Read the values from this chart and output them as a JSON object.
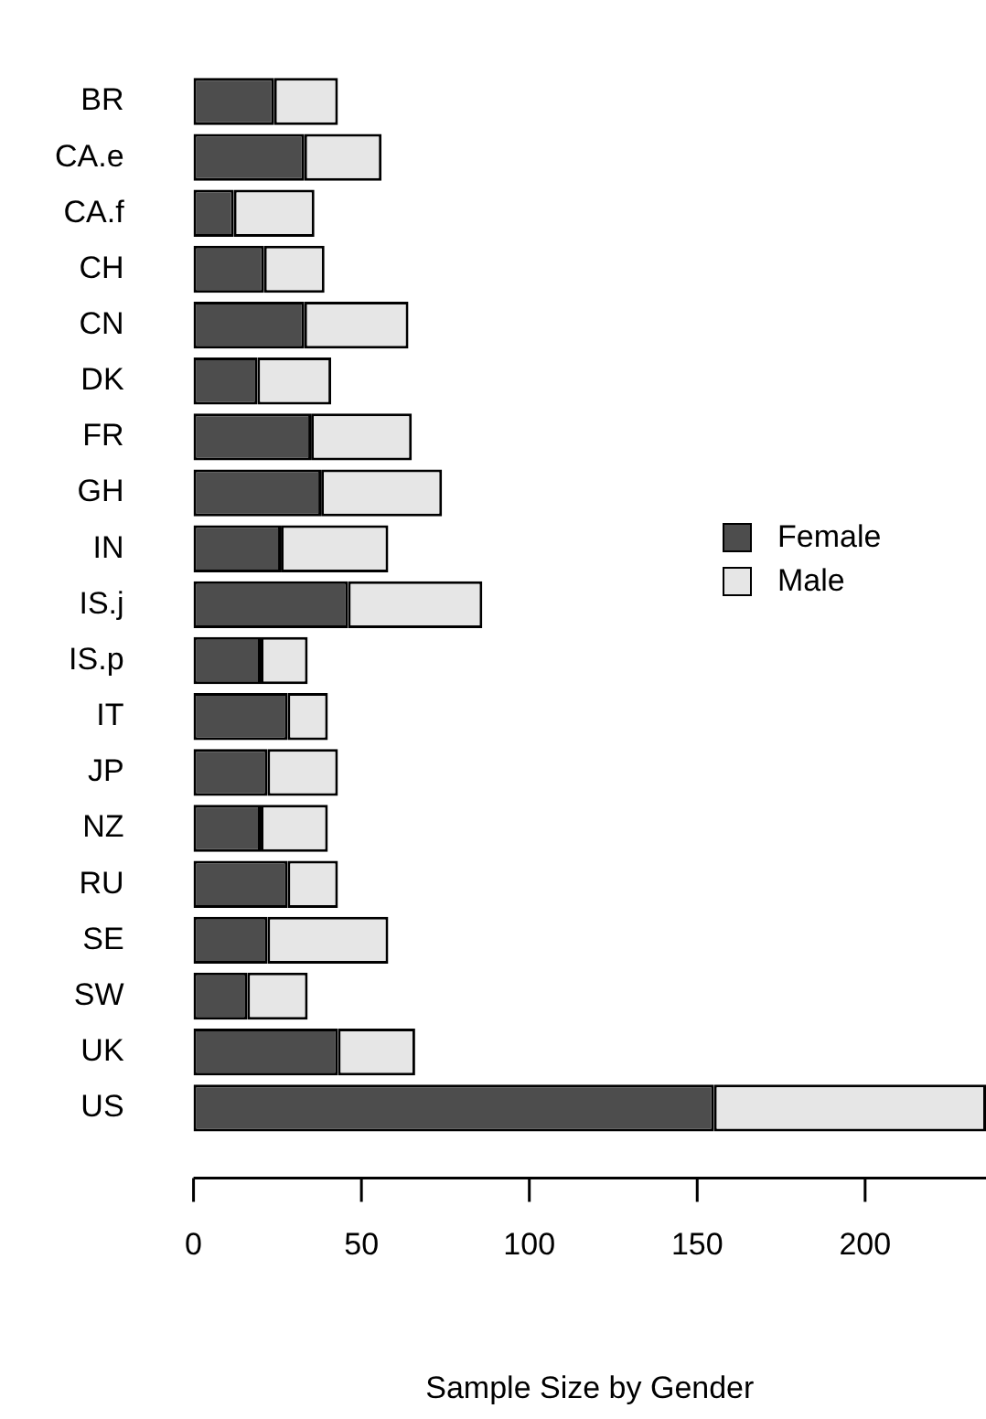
{
  "chart_data": {
    "type": "bar",
    "orientation": "horizontal",
    "stacked": true,
    "xlabel": "Sample Size by Gender",
    "categories": [
      "BR",
      "CA.e",
      "CA.f",
      "CH",
      "CN",
      "DK",
      "FR",
      "GH",
      "IN",
      "IS.j",
      "IS.p",
      "IT",
      "JP",
      "NZ",
      "RU",
      "SE",
      "SW",
      "UK",
      "US"
    ],
    "series": [
      {
        "name": "Female",
        "color": "#4d4d4d",
        "values": [
          24,
          33,
          12,
          21,
          33,
          19,
          35,
          38,
          26,
          46,
          20,
          28,
          22,
          20,
          28,
          22,
          16,
          43,
          155
        ]
      },
      {
        "name": "Male",
        "color": "#e6e6e6",
        "values": [
          19,
          23,
          24,
          18,
          31,
          22,
          30,
          36,
          32,
          40,
          14,
          12,
          21,
          20,
          15,
          36,
          18,
          23,
          81
        ]
      }
    ],
    "xlim": [
      0,
      236
    ],
    "xticks": [
      0,
      50,
      100,
      150,
      200
    ],
    "grid": false,
    "legend": "right"
  }
}
